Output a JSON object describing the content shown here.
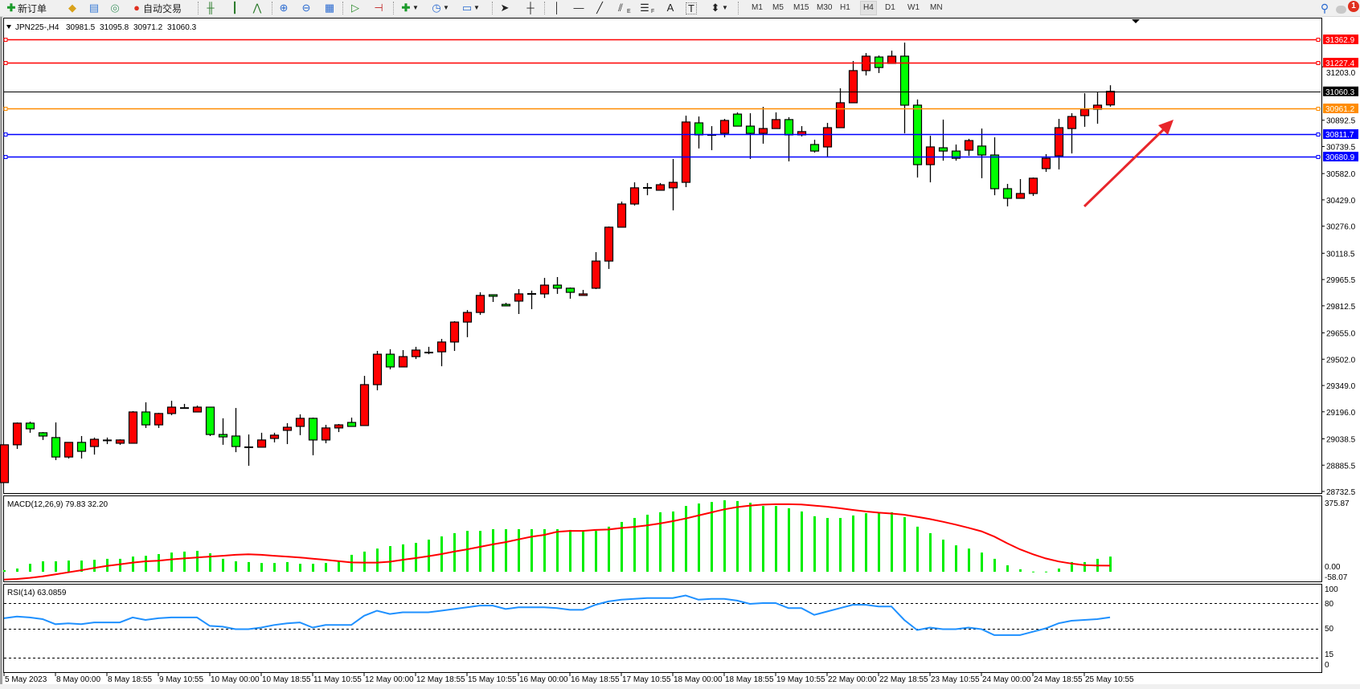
{
  "toolbar": {
    "new_order_label": "新订单",
    "auto_trading_label": "自动交易",
    "icons": [
      "new-order-icon",
      "market-watch-icon",
      "navigator-icon",
      "data-window-icon",
      "auto-trading-icon",
      "bar-chart-icon",
      "candlestick-icon",
      "line-chart-icon",
      "zoom-in-icon",
      "zoom-out-icon",
      "tile-windows-icon",
      "autoscroll-icon",
      "chart-shift-icon",
      "indicators-icon",
      "periods-icon",
      "templates-icon",
      "cursor-icon",
      "crosshair-icon",
      "vertical-line-icon",
      "horizontal-line-icon",
      "trendline-icon",
      "equidistant-channel-icon",
      "fibonacci-icon",
      "text-icon",
      "text-label-icon",
      "arrows-icon"
    ],
    "channel_letter": "E",
    "fibo_letter": "F",
    "text_letter": "A",
    "label_letter": "T",
    "timeframes": [
      "M1",
      "M5",
      "M15",
      "M30",
      "H1",
      "H4",
      "D1",
      "W1",
      "MN"
    ],
    "active_timeframe": "H4",
    "notification_count": "1"
  },
  "chart_header": {
    "symbol": "JPN225-,H4",
    "open": "30981.5",
    "high": "31095.8",
    "low": "30971.2",
    "close": "31060.3"
  },
  "colors": {
    "up_candle": "#ff0000",
    "down_candle": "#00ff00",
    "macd_histogram": "#00ee00",
    "macd_signal": "#ff0000",
    "rsi_line": "#1e90ff",
    "arrow": "#e8262b"
  },
  "price_axis": {
    "ticks": [
      "31203.0",
      "30892.5",
      "30739.5",
      "30582.0",
      "30429.0",
      "30276.0",
      "30118.5",
      "29965.5",
      "29812.5",
      "29655.0",
      "29502.0",
      "29349.0",
      "29196.0",
      "29038.5",
      "28885.5",
      "28732.5"
    ]
  },
  "levels": [
    {
      "price": "31362.9",
      "color": "#ff0000"
    },
    {
      "price": "31227.4",
      "color": "#ff0000"
    },
    {
      "price": "31060.3",
      "color": "#000000"
    },
    {
      "price": "30961.2",
      "color": "#ff8c00"
    },
    {
      "price": "30811.7",
      "color": "#0000ff"
    },
    {
      "price": "30680.9",
      "color": "#0000ff"
    }
  ],
  "time_axis": [
    "5 May 2023",
    "8 May 00:00",
    "8 May 18:55",
    "9 May 10:55",
    "10 May 00:00",
    "10 May 18:55",
    "11 May 10:55",
    "12 May 00:00",
    "12 May 18:55",
    "15 May 10:55",
    "16 May 00:00",
    "16 May 18:55",
    "17 May 10:55",
    "18 May 00:00",
    "18 May 18:55",
    "19 May 10:55",
    "22 May 00:00",
    "22 May 18:55",
    "23 May 10:55",
    "24 May 00:00",
    "24 May 18:55",
    "25 May 10:55"
  ],
  "macd": {
    "label": "MACD(12,26,9) 79.83 32.20",
    "axis_labels": [
      "375.87",
      "0.00",
      "-58.07"
    ]
  },
  "rsi": {
    "label": "RSI(14) 63.0859",
    "axis_labels": [
      "100",
      "80",
      "50",
      "15",
      "0"
    ]
  },
  "chart_data": {
    "type": "candlestick",
    "ohlc_order": [
      "open",
      "high",
      "low",
      "close"
    ],
    "ylim": [
      28732.5,
      31362.9
    ],
    "candles": [
      [
        28784,
        29004,
        28784,
        29004
      ],
      [
        29004,
        29134,
        28980,
        29130
      ],
      [
        29130,
        29139,
        29074,
        29097
      ],
      [
        29074,
        29078,
        29032,
        29055
      ],
      [
        29046,
        29134,
        28915,
        28933
      ],
      [
        28933,
        29018,
        28924,
        29018
      ],
      [
        29018,
        29055,
        28924,
        28966
      ],
      [
        28994,
        29046,
        28947,
        29036
      ],
      [
        29030,
        29046,
        29008,
        29032
      ],
      [
        29013,
        29036,
        29004,
        29032
      ],
      [
        29013,
        29200,
        29013,
        29195
      ],
      [
        29195,
        29251,
        29102,
        29120
      ],
      [
        29120,
        29190,
        29102,
        29186
      ],
      [
        29186,
        29260,
        29176,
        29223
      ],
      [
        29218,
        29242,
        29214,
        29220
      ],
      [
        29195,
        29232,
        29195,
        29223
      ],
      [
        29223,
        29223,
        29055,
        29064
      ],
      [
        29064,
        29158,
        29004,
        29050
      ],
      [
        29055,
        29218,
        28961,
        28994
      ],
      [
        28990,
        29064,
        28882,
        28992
      ],
      [
        28990,
        29074,
        28990,
        29032
      ],
      [
        29041,
        29074,
        29018,
        29060
      ],
      [
        29088,
        29130,
        29008,
        29106
      ],
      [
        29111,
        29181,
        29060,
        29158
      ],
      [
        29158,
        29162,
        28943,
        29032
      ],
      [
        29032,
        29120,
        29013,
        29102
      ],
      [
        29102,
        29125,
        29078,
        29120
      ],
      [
        29134,
        29162,
        29111,
        29111
      ],
      [
        29116,
        29405,
        29116,
        29354
      ],
      [
        29354,
        29550,
        29321,
        29531
      ],
      [
        29531,
        29560,
        29443,
        29457
      ],
      [
        29457,
        29555,
        29457,
        29517
      ],
      [
        29517,
        29574,
        29503,
        29555
      ],
      [
        29541,
        29574,
        29531,
        29543
      ],
      [
        29545,
        29620,
        29461,
        29602
      ],
      [
        29602,
        29723,
        29550,
        29718
      ],
      [
        29718,
        29788,
        29630,
        29774
      ],
      [
        29774,
        29891,
        29760,
        29873
      ],
      [
        29877,
        29877,
        29835,
        29868
      ],
      [
        29821,
        29830,
        29812,
        29812
      ],
      [
        29840,
        29910,
        29765,
        29882
      ],
      [
        29882,
        29901,
        29793,
        29884
      ],
      [
        29882,
        29975,
        29858,
        29933
      ],
      [
        29933,
        29980,
        29882,
        29915
      ],
      [
        29915,
        29919,
        29854,
        29891
      ],
      [
        29873,
        29905,
        29873,
        29882
      ],
      [
        29915,
        30125,
        29910,
        30073
      ],
      [
        30073,
        30274,
        30027,
        30270
      ],
      [
        30270,
        30419,
        30270,
        30405
      ],
      [
        30405,
        30531,
        30396,
        30499
      ],
      [
        30499,
        30527,
        30456,
        30501
      ],
      [
        30485,
        30527,
        30485,
        30517
      ],
      [
        30499,
        30667,
        30368,
        30531
      ],
      [
        30531,
        30919,
        30503,
        30882
      ],
      [
        30877,
        30914,
        30728,
        30807
      ],
      [
        30807,
        30858,
        30718,
        30809
      ],
      [
        30816,
        30900,
        30793,
        30891
      ],
      [
        30928,
        30938,
        30858,
        30858
      ],
      [
        30858,
        30933,
        30667,
        30816
      ],
      [
        30816,
        30970,
        30756,
        30844
      ],
      [
        30844,
        30938,
        30844,
        30896
      ],
      [
        30896,
        30910,
        30653,
        30807
      ],
      [
        30807,
        30858,
        30798,
        30826
      ],
      [
        30751,
        30779,
        30704,
        30713
      ],
      [
        30737,
        30877,
        30676,
        30849
      ],
      [
        30849,
        31078,
        30849,
        30994
      ],
      [
        30994,
        31237,
        30994,
        31181
      ],
      [
        31181,
        31283,
        31153,
        31265
      ],
      [
        31260,
        31269,
        31167,
        31199
      ],
      [
        31223,
        31297,
        31223,
        31265
      ],
      [
        31265,
        31344,
        30816,
        30980
      ],
      [
        30980,
        31013,
        30559,
        30634
      ],
      [
        30634,
        30802,
        30531,
        30737
      ],
      [
        30732,
        30896,
        30657,
        30713
      ],
      [
        30713,
        30751,
        30657,
        30671
      ],
      [
        30718,
        30784,
        30685,
        30774
      ],
      [
        30742,
        30844,
        30555,
        30690
      ],
      [
        30690,
        30793,
        30456,
        30494
      ],
      [
        30494,
        30522,
        30391,
        30438
      ],
      [
        30438,
        30550,
        30438,
        30466
      ],
      [
        30466,
        30559,
        30452,
        30555
      ],
      [
        30611,
        30695,
        30592,
        30671
      ],
      [
        30685,
        30900,
        30606,
        30849
      ],
      [
        30844,
        30933,
        30699,
        30914
      ],
      [
        30919,
        31050,
        30854,
        30956
      ],
      [
        30956,
        31055,
        30872,
        30980
      ],
      [
        30981.5,
        31095.8,
        30971.2,
        31060.3
      ]
    ],
    "macd_histogram": [
      8,
      17,
      42,
      55,
      55,
      59,
      59,
      63,
      68,
      68,
      80,
      84,
      93,
      101,
      106,
      110,
      97,
      68,
      55,
      51,
      46,
      46,
      51,
      42,
      42,
      46,
      59,
      89,
      106,
      122,
      135,
      144,
      152,
      169,
      186,
      203,
      215,
      215,
      224,
      224,
      224,
      224,
      224,
      224,
      220,
      211,
      215,
      237,
      262,
      283,
      300,
      313,
      317,
      346,
      359,
      367,
      376,
      372,
      363,
      346,
      346,
      334,
      317,
      292,
      283,
      283,
      296,
      308,
      308,
      313,
      287,
      237,
      203,
      169,
      139,
      122,
      101,
      68,
      34,
      13,
      1,
      1,
      17,
      51,
      51,
      68,
      79.83
    ],
    "macd_signal": [
      -41,
      -38,
      -32,
      -24,
      -14,
      -3,
      8,
      20,
      31,
      39,
      48,
      55,
      58,
      65,
      70,
      75,
      80,
      84,
      89,
      92,
      89,
      84,
      80,
      75,
      69,
      63,
      56,
      49,
      48,
      48,
      53,
      63,
      72,
      82,
      93,
      106,
      118,
      131,
      144,
      156,
      170,
      184,
      194,
      210,
      215,
      215,
      220,
      222,
      230,
      236,
      244,
      254,
      266,
      280,
      296,
      312,
      328,
      340,
      348,
      353,
      355,
      355,
      354,
      348,
      342,
      334,
      325,
      317,
      311,
      306,
      300,
      289,
      277,
      263,
      248,
      231,
      213,
      185,
      150,
      118,
      92,
      70,
      54,
      43,
      35,
      33,
      32.2
    ],
    "macd_ylim": [
      -58.07,
      375.87
    ],
    "rsi": [
      62,
      64,
      63,
      61,
      55,
      56,
      55,
      57,
      57,
      57,
      63,
      60,
      62,
      63,
      63,
      63,
      53,
      52,
      49,
      49,
      51,
      54,
      56,
      57,
      51,
      54,
      54,
      54,
      65,
      71,
      67,
      69,
      69,
      69,
      71,
      73,
      75,
      77,
      77,
      73,
      75,
      75,
      75,
      74,
      72,
      72,
      78,
      82,
      84,
      85,
      86,
      86,
      86,
      89,
      84,
      85,
      85,
      83,
      79,
      80,
      80,
      74,
      74,
      66,
      70,
      74,
      78,
      78,
      76,
      76,
      60,
      48,
      51,
      49,
      49,
      51,
      49,
      42,
      42,
      42,
      46,
      50,
      56,
      59,
      60,
      61,
      63.0859
    ],
    "rsi_levels": [
      80,
      50,
      15
    ],
    "rsi_ylim": [
      0,
      100
    ]
  }
}
